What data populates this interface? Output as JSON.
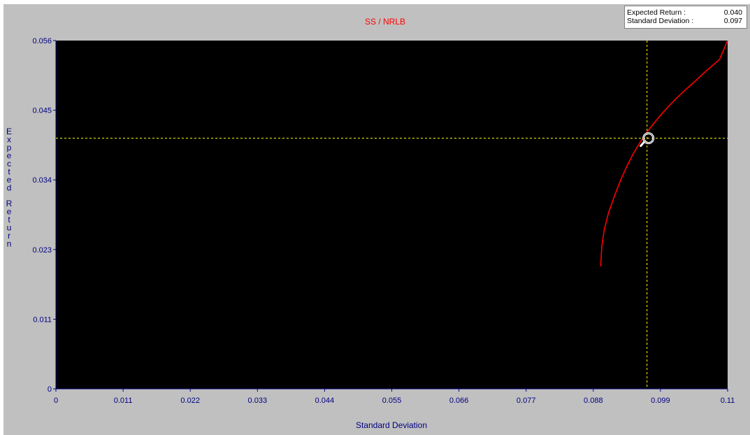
{
  "readout": {
    "expected_return_label": "Expected Return :",
    "expected_return_value": "0.040",
    "std_dev_label": "Standard Deviation :",
    "std_dev_value": "0.097"
  },
  "colors": {
    "background": "#c0c0c0",
    "plot_area": "#000000",
    "curve": "#ff0000",
    "crosshair": "#ffff00",
    "axis_text": "#000080",
    "title": "#ff0000"
  },
  "icons": {
    "cursor": "magnifier-icon"
  },
  "chart_data": {
    "type": "line",
    "title": "SS / NRLB",
    "xlabel": "Standard Deviation",
    "ylabel": "Expected Return",
    "xlim": [
      0,
      0.11
    ],
    "ylim": [
      0,
      0.056
    ],
    "x_ticks": [
      "0",
      "0.011",
      "0.022",
      "0.033",
      "0.044",
      "0.055",
      "0.066",
      "0.077",
      "0.088",
      "0.099",
      "0.11"
    ],
    "y_ticks": [
      "0",
      "0.011",
      "0.023",
      "0.034",
      "0.045",
      "0.056"
    ],
    "grid": false,
    "series": [
      {
        "x": [
          0.0892,
          0.0894,
          0.0898,
          0.0905,
          0.0915,
          0.0925,
          0.0935,
          0.0946,
          0.0957,
          0.0968,
          0.098,
          0.0992,
          0.1005,
          0.1018,
          0.1031,
          0.1045,
          0.1059,
          0.1073,
          0.1087,
          0.11
        ],
        "y": [
          0.0197,
          0.0229,
          0.0256,
          0.0283,
          0.0311,
          0.0336,
          0.0358,
          0.0379,
          0.0397,
          0.0413,
          0.0428,
          0.0442,
          0.0456,
          0.0469,
          0.0481,
          0.0493,
          0.0506,
          0.0518,
          0.053,
          0.056
        ]
      }
    ],
    "crosshair": {
      "x": 0.0968,
      "y": 0.0403
    }
  }
}
